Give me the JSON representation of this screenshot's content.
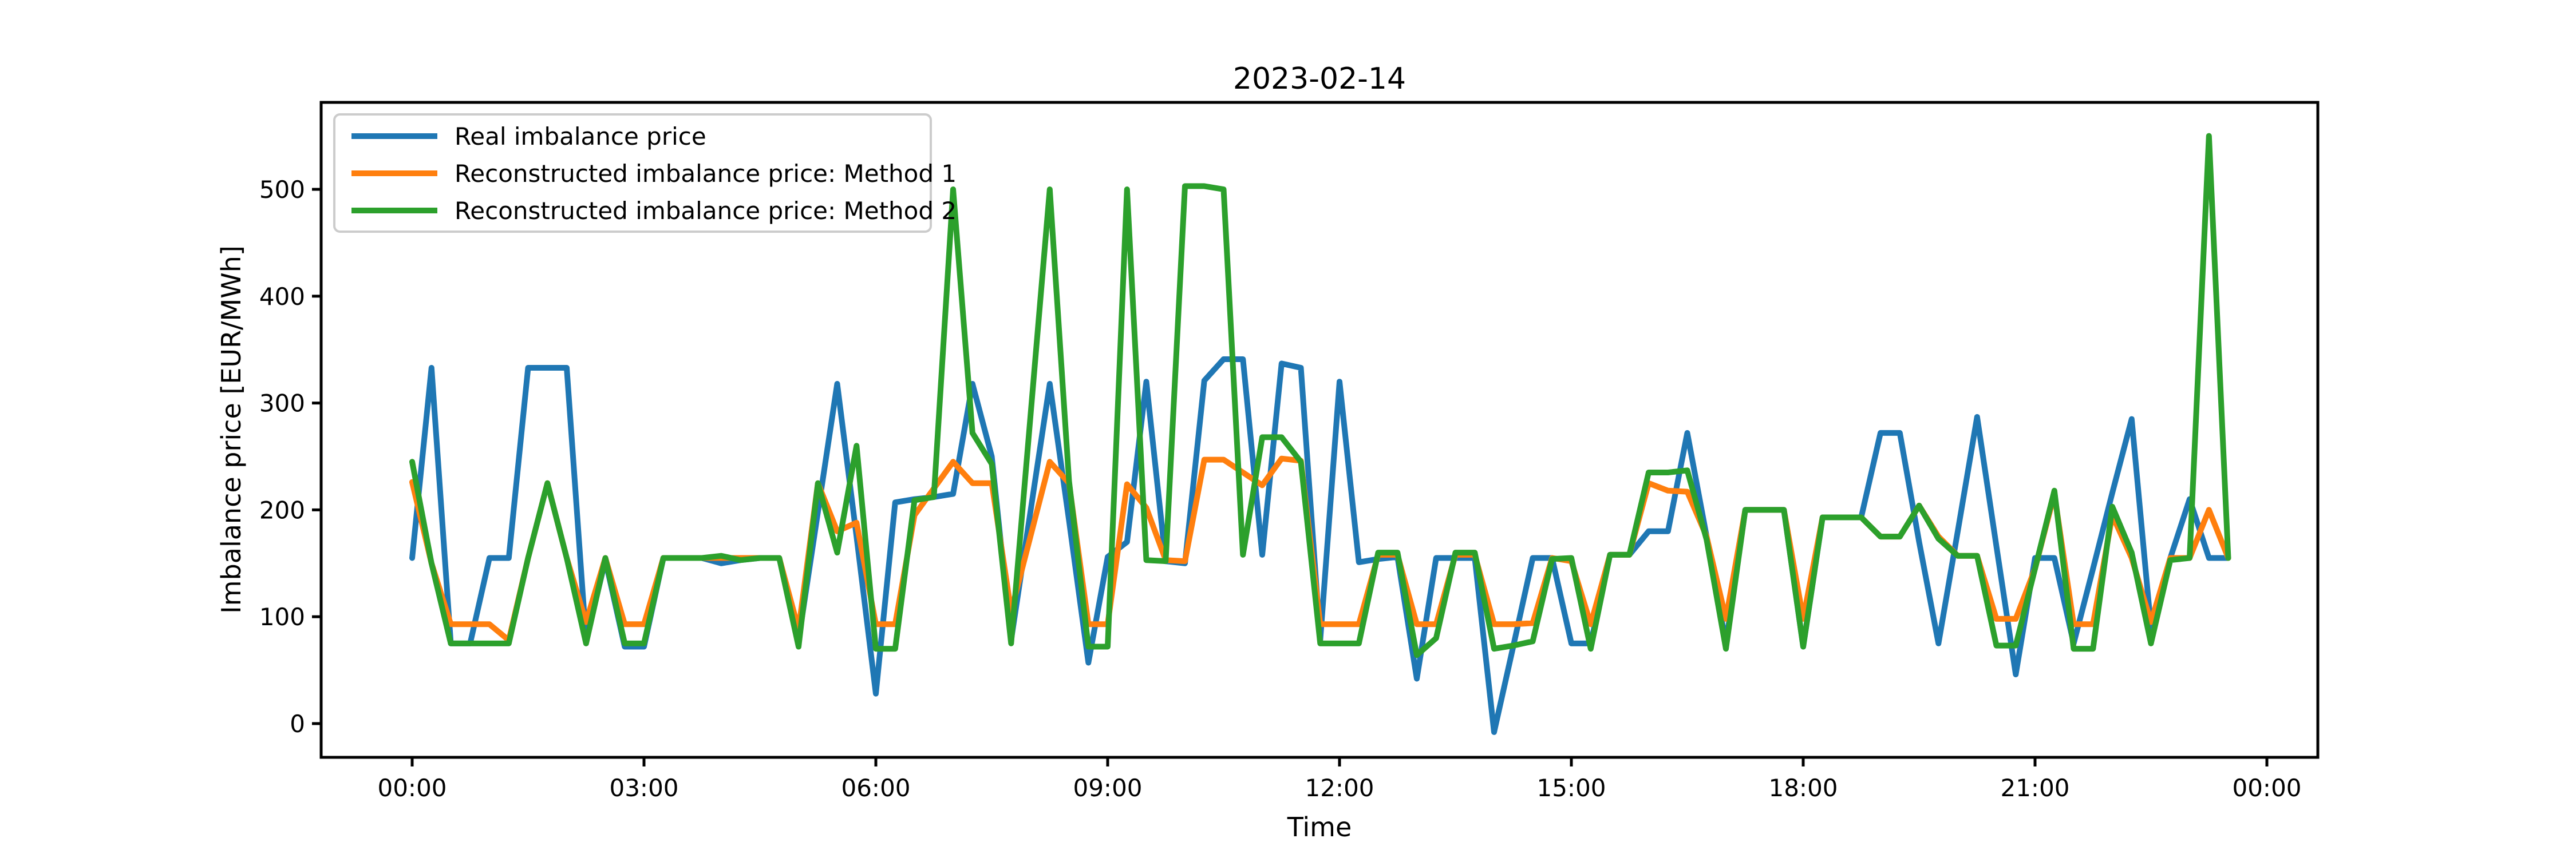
{
  "title": "2023-02-14",
  "axes": {
    "xlabel": "Time",
    "ylabel": "Imbalance price [EUR/MWh]"
  },
  "legend": {
    "position": "upper-left",
    "entries": [
      {
        "label": "Real imbalance price",
        "color": "#1f77b4"
      },
      {
        "label": "Reconstructed imbalance price: Method 1",
        "color": "#ff7f0e"
      },
      {
        "label": "Reconstructed imbalance price: Method 2",
        "color": "#2ca02c"
      }
    ]
  },
  "chart_data": {
    "type": "line",
    "title": "2023-02-14",
    "xlabel": "Time",
    "ylabel": "Imbalance price [EUR/MWh]",
    "grid": false,
    "x_tick_hours": [
      0,
      3,
      6,
      9,
      12,
      15,
      18,
      21,
      24
    ],
    "x_tick_labels": [
      "00:00",
      "03:00",
      "06:00",
      "09:00",
      "12:00",
      "15:00",
      "18:00",
      "21:00",
      "00:00"
    ],
    "y_ticks": [
      0,
      100,
      200,
      300,
      400,
      500
    ],
    "ylim": [
      -32,
      581
    ],
    "interval_minutes": 15,
    "times": [
      "00:00",
      "00:15",
      "00:30",
      "00:45",
      "01:00",
      "01:15",
      "01:30",
      "01:45",
      "02:00",
      "02:15",
      "02:30",
      "02:45",
      "03:00",
      "03:15",
      "03:30",
      "03:45",
      "04:00",
      "04:15",
      "04:30",
      "04:45",
      "05:00",
      "05:15",
      "05:30",
      "05:45",
      "06:00",
      "06:15",
      "06:30",
      "06:45",
      "07:00",
      "07:15",
      "07:30",
      "07:45",
      "08:00",
      "08:15",
      "08:30",
      "08:45",
      "09:00",
      "09:15",
      "09:30",
      "09:45",
      "10:00",
      "10:15",
      "10:30",
      "10:45",
      "11:00",
      "11:15",
      "11:30",
      "11:45",
      "12:00",
      "12:15",
      "12:30",
      "12:45",
      "13:00",
      "13:15",
      "13:30",
      "13:45",
      "14:00",
      "14:15",
      "14:30",
      "14:45",
      "15:00",
      "15:15",
      "15:30",
      "15:45",
      "16:00",
      "16:15",
      "16:30",
      "16:45",
      "17:00",
      "17:15",
      "17:30",
      "17:45",
      "18:00",
      "18:15",
      "18:30",
      "18:45",
      "19:00",
      "19:15",
      "19:30",
      "19:45",
      "20:00",
      "20:15",
      "20:30",
      "20:45",
      "21:00",
      "21:15",
      "21:30",
      "21:45",
      "22:00",
      "22:15",
      "22:30",
      "22:45",
      "23:00",
      "23:15",
      "23:30"
    ],
    "series": [
      {
        "name": "Real imbalance price",
        "color": "#1f77b4",
        "values": [
          155,
          333,
          75,
          75,
          155,
          155,
          333,
          333,
          333,
          78,
          153,
          72,
          72,
          155,
          155,
          155,
          150,
          153,
          155,
          155,
          78,
          198,
          318,
          175,
          28,
          207,
          210,
          212,
          215,
          318,
          250,
          78,
          198,
          318,
          190,
          57,
          156,
          170,
          320,
          152,
          150,
          321,
          341,
          341,
          158,
          337,
          333,
          78,
          320,
          151,
          154,
          156,
          42,
          155,
          155,
          155,
          -8,
          73,
          155,
          155,
          75,
          75,
          158,
          158,
          180,
          180,
          272,
          175,
          75,
          200,
          200,
          200,
          72,
          193,
          193,
          193,
          272,
          272,
          170,
          75,
          180,
          287,
          166,
          46,
          155,
          155,
          75,
          145,
          216,
          285,
          90,
          155,
          210,
          155,
          155
        ]
      },
      {
        "name": "Reconstructed imbalance price: Method 1",
        "color": "#ff7f0e",
        "values": [
          226,
          150,
          93,
          93,
          93,
          78,
          155,
          225,
          155,
          95,
          155,
          93,
          93,
          155,
          155,
          155,
          155,
          155,
          155,
          155,
          88,
          225,
          180,
          188,
          93,
          93,
          195,
          220,
          245,
          225,
          225,
          105,
          175,
          245,
          225,
          93,
          93,
          224,
          202,
          153,
          152,
          247,
          247,
          235,
          223,
          248,
          246,
          93,
          93,
          93,
          158,
          158,
          93,
          93,
          158,
          158,
          93,
          93,
          94,
          155,
          152,
          93,
          158,
          158,
          225,
          218,
          217,
          175,
          98,
          200,
          200,
          200,
          98,
          193,
          193,
          193,
          175,
          175,
          204,
          175,
          157,
          157,
          98,
          98,
          145,
          215,
          93,
          93,
          195,
          155,
          95,
          155,
          155,
          200,
          155
        ]
      },
      {
        "name": "Reconstructed imbalance price: Method 2",
        "color": "#2ca02c",
        "values": [
          245,
          150,
          75,
          75,
          75,
          75,
          155,
          225,
          155,
          75,
          155,
          75,
          75,
          155,
          155,
          155,
          157,
          153,
          155,
          155,
          72,
          225,
          160,
          260,
          70,
          70,
          209,
          212,
          500,
          272,
          243,
          75,
          287,
          500,
          227,
          72,
          72,
          500,
          153,
          152,
          503,
          503,
          500,
          158,
          268,
          268,
          245,
          75,
          75,
          75,
          160,
          160,
          64,
          80,
          160,
          160,
          70,
          73,
          77,
          154,
          155,
          70,
          158,
          158,
          235,
          235,
          237,
          172,
          70,
          200,
          200,
          200,
          72,
          193,
          193,
          193,
          175,
          175,
          204,
          173,
          157,
          157,
          73,
          73,
          145,
          218,
          70,
          70,
          203,
          160,
          75,
          153,
          155,
          550,
          155
        ]
      }
    ]
  }
}
